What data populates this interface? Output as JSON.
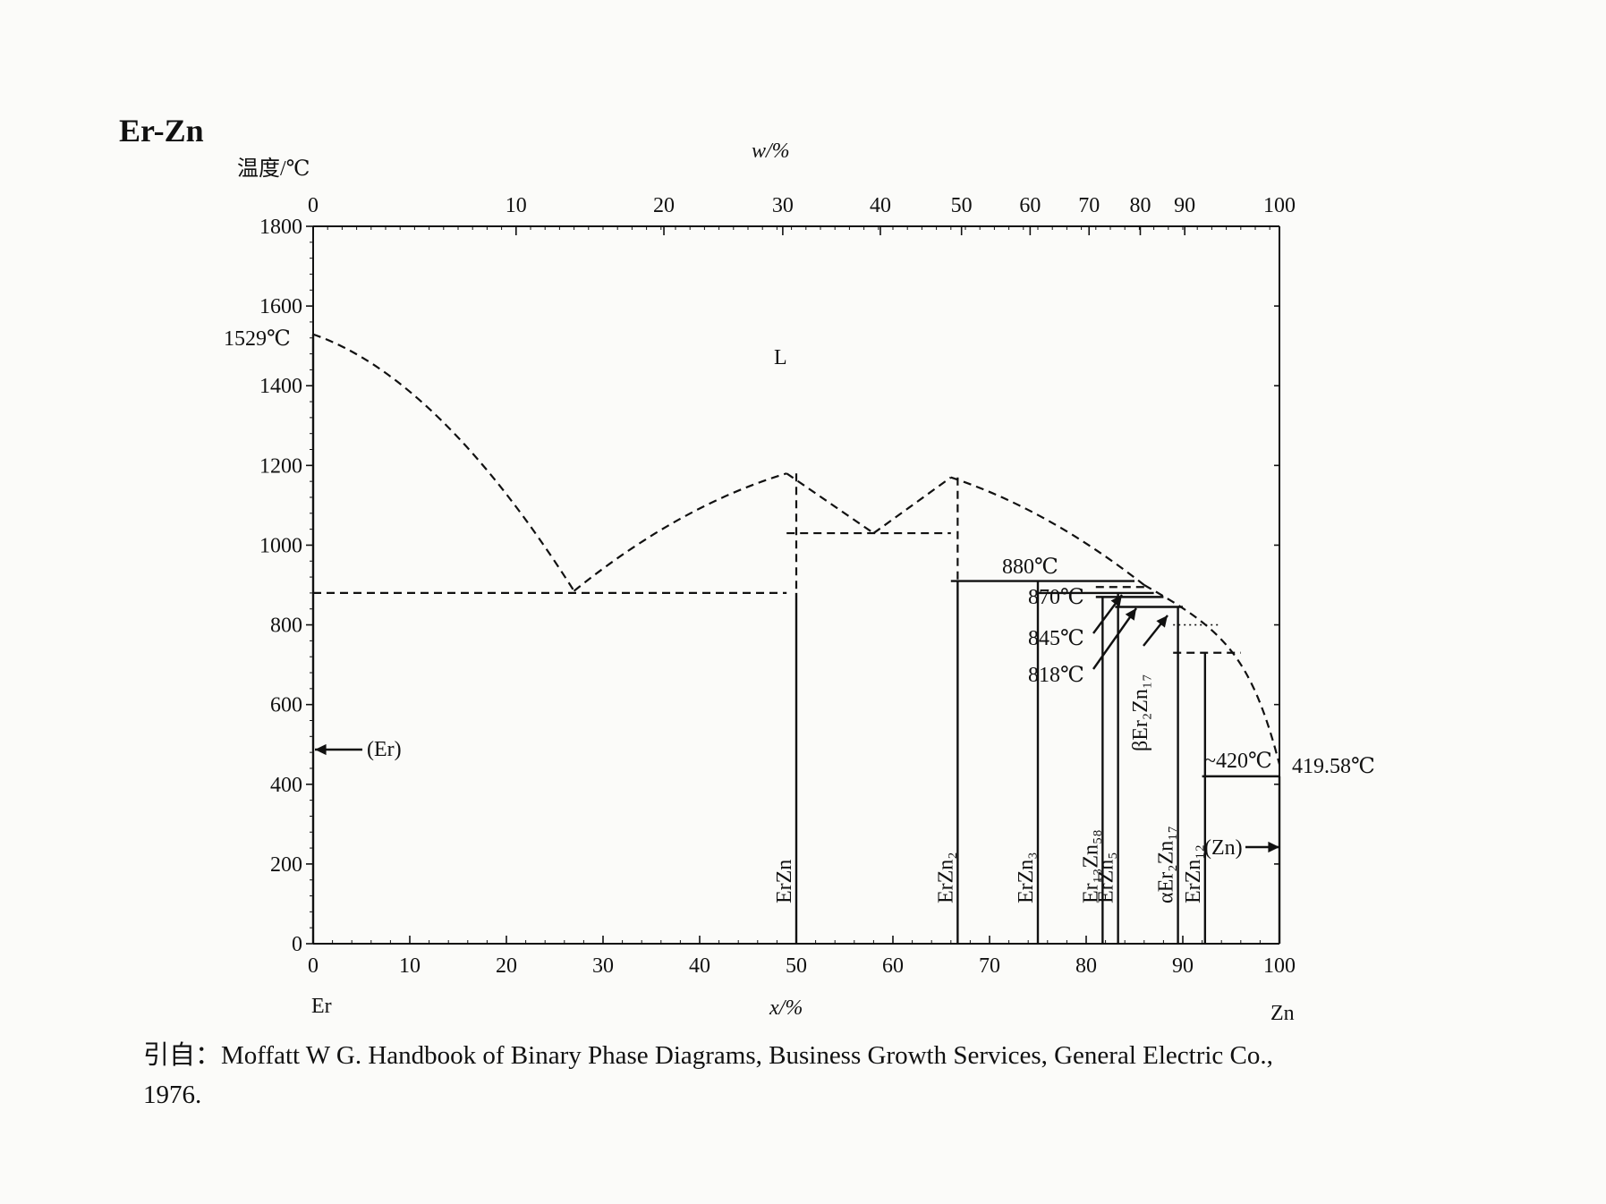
{
  "chart_data": {
    "type": "line",
    "title": "Er-Zn",
    "ylabel": "温度/℃",
    "xlabel": "x/%",
    "x2label": "w/%",
    "ylim": [
      0,
      1800
    ],
    "xlim": [
      0,
      100
    ],
    "y_ticks": [
      0,
      200,
      400,
      600,
      800,
      1000,
      1200,
      1400,
      1600,
      1800
    ],
    "x_ticks": [
      0,
      10,
      20,
      30,
      40,
      50,
      60,
      70,
      80,
      90,
      100
    ],
    "w_ticks": [
      0,
      10,
      20,
      30,
      40,
      50,
      60,
      70,
      80,
      90,
      100
    ],
    "w_tick_x": [
      0,
      21.0,
      36.3,
      48.6,
      58.7,
      67.1,
      74.2,
      80.3,
      85.6,
      90.2,
      100
    ],
    "left_element": "Er",
    "right_element": "Zn",
    "liquid_label": "L",
    "er_melting_label": "1529℃",
    "zn_melting_label": "419.58℃",
    "liquidus_segments": [
      [
        [
          0,
          1529
        ],
        [
          13,
          1420
        ],
        [
          27,
          885
        ]
      ],
      [
        [
          27,
          885
        ],
        [
          38,
          1100
        ],
        [
          49,
          1180
        ]
      ],
      [
        [
          49,
          1180
        ],
        [
          58,
          1030
        ]
      ],
      [
        [
          58,
          1030
        ],
        [
          66,
          1170
        ]
      ],
      [
        [
          66,
          1170
        ],
        [
          76,
          1090
        ],
        [
          86,
          900
        ]
      ],
      [
        [
          86,
          900
        ],
        [
          94,
          790
        ],
        [
          97,
          730
        ],
        [
          100,
          450
        ]
      ]
    ],
    "isotherms": [
      {
        "from": 0,
        "to": 49,
        "T": 880,
        "style": "dashed"
      },
      {
        "from": 49,
        "to": 66,
        "T": 1030,
        "style": "dashed"
      },
      {
        "from": 66,
        "to": 85,
        "T": 910,
        "style": "solid"
      },
      {
        "from": 81,
        "to": 86,
        "T": 895,
        "style": "dashed"
      },
      {
        "from": 75,
        "to": 87,
        "T": 880,
        "style": "solid"
      },
      {
        "from": 81,
        "to": 88,
        "T": 870,
        "style": "solid"
      },
      {
        "from": 83,
        "to": 90,
        "T": 845,
        "style": "solid"
      },
      {
        "from": 89,
        "to": 94,
        "T": 800,
        "style": "dotted"
      },
      {
        "from": 89,
        "to": 96,
        "T": 730,
        "style": "dashed"
      },
      {
        "from": 92,
        "to": 100,
        "T": 420,
        "style": "solid"
      }
    ],
    "compounds": [
      {
        "label": "ErZn",
        "x": 50,
        "T_top": 1180,
        "T_solid": 880
      },
      {
        "label": "ErZn₂",
        "x": 66.7,
        "T_top": 1170,
        "T_solid": 910
      },
      {
        "label": "ErZn₃",
        "x": 75,
        "T_top": 910
      },
      {
        "label": "Er₁₃Zn₅₈",
        "x": 81.7,
        "T_top": 870
      },
      {
        "label": "ErZn₅",
        "x": 83.3,
        "T_top": 880
      },
      {
        "label": "αEr₂Zn₁₇",
        "x": 89.5,
        "T_top": 845
      },
      {
        "label": "ErZn₁₂",
        "x": 92.3,
        "T_top": 730
      }
    ],
    "phase_labels": {
      "er": "(Er)",
      "zn": "(Zn)",
      "beta": "βEr₂Zn₁₇"
    },
    "temperature_annotations": [
      "880℃",
      "870℃",
      "845℃",
      "818℃",
      "~420℃"
    ]
  },
  "citation": {
    "line1": "引自：Moffatt W G. Handbook of Binary Phase Diagrams, Business Growth Services, General Electric Co.,",
    "line2": "1976."
  }
}
